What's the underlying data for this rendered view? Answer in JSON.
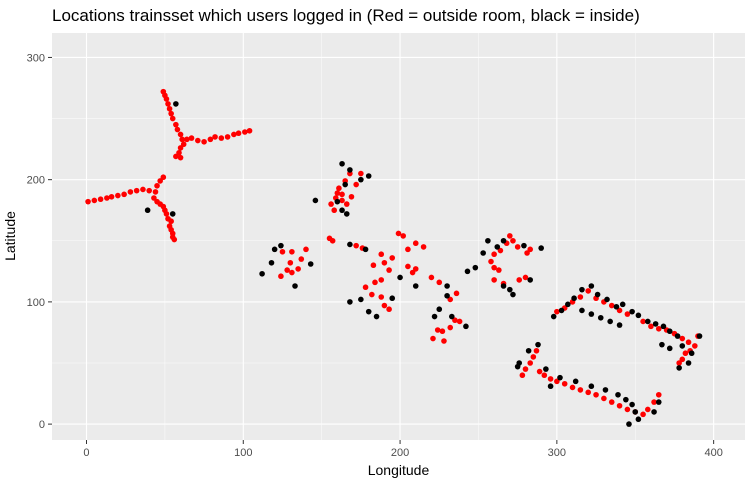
{
  "chart_data": {
    "type": "scatter",
    "title": "Locations trainsset which users logged in (Red = outside room, black = inside)",
    "xlabel": "Longitude",
    "ylabel": "Latitude",
    "xlim": [
      -22,
      420
    ],
    "ylim": [
      -13,
      320
    ],
    "xticks": [
      0,
      100,
      200,
      300,
      400
    ],
    "yticks": [
      0,
      100,
      200,
      300
    ],
    "grid": true,
    "legend": "none",
    "colors": {
      "panel": "#ebebeb",
      "grid_major": "#ffffff",
      "outside": "#ff0000",
      "inside": "#000000"
    },
    "series": [
      {
        "color": "#ff0000",
        "points": [
          [
            1,
            182
          ],
          [
            5,
            183
          ],
          [
            9,
            184
          ],
          [
            13,
            185
          ],
          [
            16,
            186
          ],
          [
            20,
            187
          ],
          [
            24,
            188
          ],
          [
            28,
            190
          ],
          [
            32,
            191
          ],
          [
            36,
            192
          ],
          [
            40,
            191
          ],
          [
            44,
            190
          ],
          [
            45,
            195
          ],
          [
            47,
            199
          ],
          [
            49,
            202
          ],
          [
            43,
            185
          ],
          [
            45,
            182
          ],
          [
            47,
            180
          ],
          [
            49,
            178
          ],
          [
            50,
            175
          ],
          [
            51,
            172
          ],
          [
            52,
            168
          ],
          [
            54,
            166
          ],
          [
            53,
            162
          ],
          [
            54,
            159
          ],
          [
            55,
            156
          ],
          [
            55,
            153
          ],
          [
            56,
            151
          ],
          [
            49,
            272
          ],
          [
            50,
            269
          ],
          [
            51,
            266
          ],
          [
            52,
            262
          ],
          [
            53,
            258
          ],
          [
            54,
            254
          ],
          [
            55,
            250
          ],
          [
            57,
            245
          ],
          [
            58,
            241
          ],
          [
            60,
            237
          ],
          [
            61,
            233
          ],
          [
            62,
            229
          ],
          [
            60,
            226
          ],
          [
            59,
            222
          ],
          [
            57,
            219
          ],
          [
            60,
            218
          ],
          [
            64,
            233
          ],
          [
            67,
            234
          ],
          [
            71,
            232
          ],
          [
            75,
            231
          ],
          [
            79,
            233
          ],
          [
            82,
            235
          ],
          [
            86,
            234
          ],
          [
            90,
            235
          ],
          [
            94,
            237
          ],
          [
            97,
            238
          ],
          [
            101,
            239
          ],
          [
            104,
            240
          ],
          [
            156,
            180
          ],
          [
            158,
            175
          ],
          [
            159,
            185
          ],
          [
            160,
            189
          ],
          [
            161,
            193
          ],
          [
            163,
            188
          ],
          [
            163,
            183
          ],
          [
            166,
            180
          ],
          [
            169,
            186
          ],
          [
            172,
            196
          ],
          [
            168,
            205
          ],
          [
            175,
            205
          ],
          [
            165,
            199
          ],
          [
            155,
            152
          ],
          [
            157,
            150
          ],
          [
            172,
            146
          ],
          [
            176,
            144
          ],
          [
            188,
            139
          ],
          [
            190,
            132
          ],
          [
            183,
            130
          ],
          [
            193,
            126
          ],
          [
            195,
            136
          ],
          [
            199,
            156
          ],
          [
            202,
            154
          ],
          [
            205,
            143
          ],
          [
            210,
            148
          ],
          [
            215,
            145
          ],
          [
            184,
            116
          ],
          [
            188,
            118
          ],
          [
            182,
            106
          ],
          [
            188,
            104
          ],
          [
            190,
            97
          ],
          [
            193,
            94
          ],
          [
            205,
            129
          ],
          [
            208,
            124
          ],
          [
            210,
            127
          ],
          [
            220,
            120
          ],
          [
            225,
            116
          ],
          [
            178,
            112
          ],
          [
            125,
            141
          ],
          [
            131,
            141
          ],
          [
            130,
            132
          ],
          [
            124,
            121
          ],
          [
            128,
            126
          ],
          [
            131,
            124
          ],
          [
            135,
            127
          ],
          [
            137,
            135
          ],
          [
            140,
            143
          ],
          [
            221,
            70
          ],
          [
            224,
            77
          ],
          [
            227,
            76
          ],
          [
            228,
            68
          ],
          [
            232,
            79
          ],
          [
            235,
            85
          ],
          [
            238,
            84
          ],
          [
            232,
            102
          ],
          [
            236,
            107
          ],
          [
            258,
            133
          ],
          [
            260,
            128
          ],
          [
            263,
            126
          ],
          [
            260,
            139
          ],
          [
            264,
            142
          ],
          [
            268,
            148
          ],
          [
            270,
            154
          ],
          [
            272,
            150
          ],
          [
            275,
            145
          ],
          [
            281,
            140
          ],
          [
            283,
            143
          ],
          [
            260,
            118
          ],
          [
            266,
            115
          ],
          [
            276,
            118
          ],
          [
            280,
            120
          ],
          [
            278,
            40
          ],
          [
            280,
            45
          ],
          [
            283,
            50
          ],
          [
            285,
            55
          ],
          [
            287,
            60
          ],
          [
            289,
            43
          ],
          [
            292,
            40
          ],
          [
            296,
            37
          ],
          [
            300,
            35
          ],
          [
            305,
            33
          ],
          [
            310,
            30
          ],
          [
            315,
            28
          ],
          [
            320,
            26
          ],
          [
            325,
            24
          ],
          [
            330,
            21
          ],
          [
            335,
            18
          ],
          [
            340,
            15
          ],
          [
            345,
            12
          ],
          [
            350,
            10
          ],
          [
            355,
            8
          ],
          [
            358,
            12
          ],
          [
            362,
            18
          ],
          [
            365,
            24
          ],
          [
            300,
            92
          ],
          [
            305,
            95
          ],
          [
            310,
            100
          ],
          [
            315,
            104
          ],
          [
            320,
            109
          ],
          [
            325,
            103
          ],
          [
            330,
            100
          ],
          [
            335,
            97
          ],
          [
            340,
            93
          ],
          [
            345,
            90
          ],
          [
            355,
            84
          ],
          [
            360,
            80
          ],
          [
            365,
            78
          ],
          [
            370,
            77
          ],
          [
            375,
            74
          ],
          [
            380,
            70
          ],
          [
            384,
            67
          ],
          [
            388,
            64
          ],
          [
            382,
            58
          ],
          [
            380,
            53
          ],
          [
            378,
            50
          ],
          [
            385,
            60
          ],
          [
            390,
            72
          ]
        ]
      },
      {
        "color": "#000000",
        "points": [
          [
            57,
            262
          ],
          [
            39,
            175
          ],
          [
            55,
            172
          ],
          [
            160,
            182
          ],
          [
            163,
            175
          ],
          [
            166,
            172
          ],
          [
            165,
            196
          ],
          [
            163,
            213
          ],
          [
            168,
            208
          ],
          [
            175,
            200
          ],
          [
            180,
            203
          ],
          [
            146,
            183
          ],
          [
            168,
            147
          ],
          [
            178,
            143
          ],
          [
            168,
            100
          ],
          [
            175,
            102
          ],
          [
            180,
            92
          ],
          [
            185,
            88
          ],
          [
            195,
            103
          ],
          [
            200,
            120
          ],
          [
            210,
            113
          ],
          [
            230,
            113
          ],
          [
            112,
            123
          ],
          [
            118,
            132
          ],
          [
            120,
            143
          ],
          [
            124,
            146
          ],
          [
            133,
            113
          ],
          [
            143,
            131
          ],
          [
            222,
            88
          ],
          [
            225,
            94
          ],
          [
            233,
            88
          ],
          [
            242,
            80
          ],
          [
            230,
            105
          ],
          [
            243,
            125
          ],
          [
            248,
            128
          ],
          [
            253,
            140
          ],
          [
            256,
            150
          ],
          [
            262,
            145
          ],
          [
            266,
            150
          ],
          [
            279,
            146
          ],
          [
            290,
            144
          ],
          [
            266,
            113
          ],
          [
            270,
            110
          ],
          [
            272,
            106
          ],
          [
            283,
            118
          ],
          [
            276,
            50
          ],
          [
            282,
            60
          ],
          [
            288,
            65
          ],
          [
            275,
            47
          ],
          [
            293,
            45
          ],
          [
            296,
            31
          ],
          [
            302,
            38
          ],
          [
            312,
            35
          ],
          [
            322,
            31
          ],
          [
            331,
            28
          ],
          [
            339,
            24
          ],
          [
            344,
            20
          ],
          [
            348,
            16
          ],
          [
            350,
            10
          ],
          [
            346,
            0
          ],
          [
            352,
            4
          ],
          [
            362,
            10
          ],
          [
            365,
            18
          ],
          [
            298,
            88
          ],
          [
            303,
            93
          ],
          [
            307,
            98
          ],
          [
            311,
            103
          ],
          [
            316,
            110
          ],
          [
            322,
            113
          ],
          [
            326,
            106
          ],
          [
            332,
            102
          ],
          [
            338,
            96
          ],
          [
            342,
            98
          ],
          [
            348,
            92
          ],
          [
            352,
            89
          ],
          [
            358,
            84
          ],
          [
            363,
            82
          ],
          [
            368,
            80
          ],
          [
            372,
            76
          ],
          [
            377,
            72
          ],
          [
            380,
            64
          ],
          [
            386,
            58
          ],
          [
            384,
            50
          ],
          [
            378,
            46
          ],
          [
            391,
            72
          ],
          [
            367,
            65
          ],
          [
            372,
            62
          ],
          [
            316,
            93
          ],
          [
            322,
            90
          ],
          [
            328,
            87
          ],
          [
            334,
            84
          ],
          [
            340,
            81
          ]
        ]
      }
    ]
  }
}
